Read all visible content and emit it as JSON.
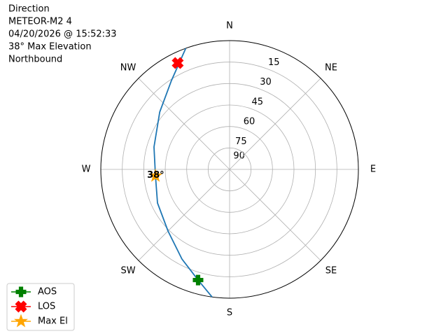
{
  "chart_data": {
    "type": "polar",
    "title": [
      "Direction",
      "METEOR-M2 4",
      "04/20/2026 @ 15:52:33",
      "38° Max Elevation",
      "Northbound"
    ],
    "rlim": [
      90,
      0
    ],
    "rticks": [
      90,
      75,
      60,
      45,
      30,
      15
    ],
    "thetaticks": [
      {
        "value": 0,
        "label": "N"
      },
      {
        "value": 45,
        "label": "NE"
      },
      {
        "value": 90,
        "label": "E"
      },
      {
        "value": 135,
        "label": "SE"
      },
      {
        "value": 180,
        "label": "S"
      },
      {
        "value": 225,
        "label": "SW"
      },
      {
        "value": 270,
        "label": "W"
      },
      {
        "value": 315,
        "label": "NW"
      }
    ],
    "grid": true,
    "track": {
      "color": "#1f77b4",
      "azimuth": [
        187.8,
        195.9,
        208,
        225,
        245,
        265,
        286.5,
        309.4,
        326.8,
        340.1
      ],
      "elevation": [
        0,
        9.6,
        19.1,
        29.1,
        34.4,
        38,
        34.9,
        26.8,
        15.8,
        0
      ]
    },
    "markers": [
      {
        "name": "AOS",
        "color": "#008000",
        "shape": "plus",
        "azimuth": 195.9,
        "elevation": 9.6
      },
      {
        "name": "LOS",
        "color": "#ff0000",
        "shape": "x",
        "azimuth": 334,
        "elevation": 7.3
      },
      {
        "name": "Max El",
        "color": "#ffa500",
        "shape": "star",
        "azimuth": 265,
        "elevation": 38
      }
    ],
    "annotation": "38°",
    "legend": "lower-left"
  }
}
